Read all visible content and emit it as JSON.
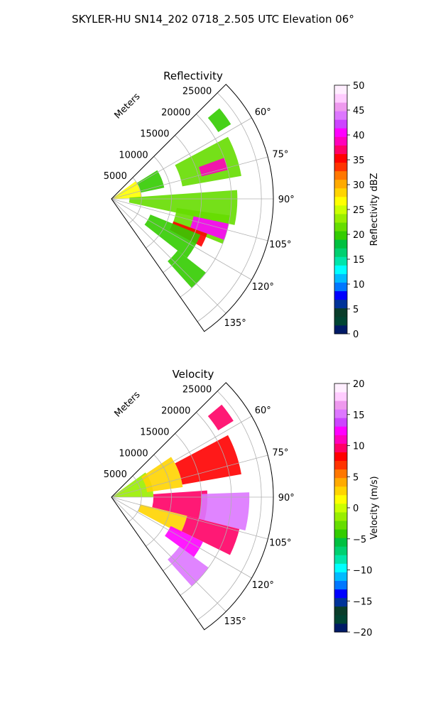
{
  "figure_title": "SKYLER-HU  SN14_202  0718_2.505 UTC Elevation 06°",
  "chart_data": [
    {
      "type": "heatmap",
      "projection": "polar-sector",
      "title": "Reflectivity",
      "range_label": "Meters",
      "range_ticks": [
        5000,
        10000,
        15000,
        20000,
        25000
      ],
      "range_max": 27000,
      "azimuth_range_deg": [
        45,
        145
      ],
      "azimuth_ticks": [
        "60°",
        "75°",
        "90°",
        "105°",
        "120°",
        "135°"
      ],
      "colorbar": {
        "label": "Reflectivity dBZ",
        "min": 0,
        "max": 50,
        "ticks": [
          "0",
          "5",
          "10",
          "15",
          "20",
          "25",
          "30",
          "35",
          "40",
          "45",
          "50"
        ],
        "colors": [
          "#001a66",
          "#004433",
          "#0a3d2a",
          "#003399",
          "#0000ff",
          "#0077ff",
          "#00bbff",
          "#00ffff",
          "#00e5aa",
          "#00d070",
          "#00c040",
          "#33cc00",
          "#66dd00",
          "#99ee00",
          "#ccff00",
          "#ffff00",
          "#ffd400",
          "#ffaa00",
          "#ff7700",
          "#ff3300",
          "#ff0000",
          "#ff0066",
          "#ff00bb",
          "#ff00ff",
          "#cc44ff",
          "#dd77ff",
          "#ee99ee",
          "#ffccff",
          "#ffeeff"
        ]
      },
      "echo_regions": [
        {
          "az": [
            50,
            58
          ],
          "r": [
            21000,
            23500
          ],
          "value": 20
        },
        {
          "az": [
            58,
            78
          ],
          "r": [
            5000,
            9000
          ],
          "value": 20
        },
        {
          "az": [
            62,
            80
          ],
          "r": [
            12000,
            22000
          ],
          "value": 22
        },
        {
          "az": [
            70,
            76
          ],
          "r": [
            15500,
            20000
          ],
          "value": 38
        },
        {
          "az": [
            54,
            88
          ],
          "r": [
            200,
            5000
          ],
          "value": 27
        },
        {
          "az": [
            86,
            102
          ],
          "r": [
            3000,
            21000
          ],
          "value": 21
        },
        {
          "az": [
            98,
            112
          ],
          "r": [
            11000,
            20000
          ],
          "value": 22
        },
        {
          "az": [
            102,
            110
          ],
          "r": [
            14000,
            20000
          ],
          "value": 40
        },
        {
          "az": [
            110,
            118
          ],
          "r": [
            11000,
            17000
          ],
          "value": 36
        },
        {
          "az": [
            112,
            128
          ],
          "r": [
            7000,
            16000
          ],
          "value": 20
        },
        {
          "az": [
            128,
            138
          ],
          "r": [
            14000,
            20000
          ],
          "value": 20
        }
      ]
    },
    {
      "type": "heatmap",
      "projection": "polar-sector",
      "title": "Velocity",
      "range_label": "Meters",
      "range_ticks": [
        5000,
        10000,
        15000,
        20000,
        25000
      ],
      "range_max": 27000,
      "azimuth_range_deg": [
        45,
        145
      ],
      "azimuth_ticks": [
        "60°",
        "75°",
        "90°",
        "105°",
        "120°",
        "135°"
      ],
      "colorbar": {
        "label": "Velocity (m/s)",
        "min": -20,
        "max": 20,
        "ticks": [
          "−20",
          "−15",
          "−10",
          "−5",
          "0",
          "5",
          "10",
          "15",
          "20"
        ],
        "colors": [
          "#001a66",
          "#004433",
          "#0a3d2a",
          "#003399",
          "#0000ff",
          "#0077ff",
          "#00bbff",
          "#00ffff",
          "#00e5aa",
          "#00d070",
          "#00c040",
          "#33cc00",
          "#66dd00",
          "#99ee00",
          "#ccff00",
          "#ffff00",
          "#ffd400",
          "#ffaa00",
          "#ff7700",
          "#ff3300",
          "#ff0000",
          "#ff0066",
          "#ff00bb",
          "#ff00ff",
          "#cc44ff",
          "#dd77ff",
          "#ee99ee",
          "#ffccff",
          "#ffeeff"
        ]
      },
      "echo_regions": [
        {
          "az": [
            50,
            58
          ],
          "r": [
            21000,
            24000
          ],
          "value": 10
        },
        {
          "az": [
            54,
            90
          ],
          "r": [
            200,
            7000
          ],
          "value": -2
        },
        {
          "az": [
            56,
            82
          ],
          "r": [
            6000,
            12000
          ],
          "value": 3
        },
        {
          "az": [
            62,
            80
          ],
          "r": [
            12000,
            22000
          ],
          "value": 8
        },
        {
          "az": [
            86,
            104
          ],
          "r": [
            7000,
            16000
          ],
          "value": 10
        },
        {
          "az": [
            88,
            104
          ],
          "r": [
            15000,
            23000
          ],
          "value": 15
        },
        {
          "az": [
            104,
            118
          ],
          "r": [
            5000,
            13000
          ],
          "value": 3
        },
        {
          "az": [
            104,
            116
          ],
          "r": [
            13000,
            22000
          ],
          "value": 10
        },
        {
          "az": [
            116,
            126
          ],
          "r": [
            11000,
            17000
          ],
          "value": 12
        },
        {
          "az": [
            126,
            138
          ],
          "r": [
            14000,
            20000
          ],
          "value": 15
        }
      ]
    }
  ]
}
